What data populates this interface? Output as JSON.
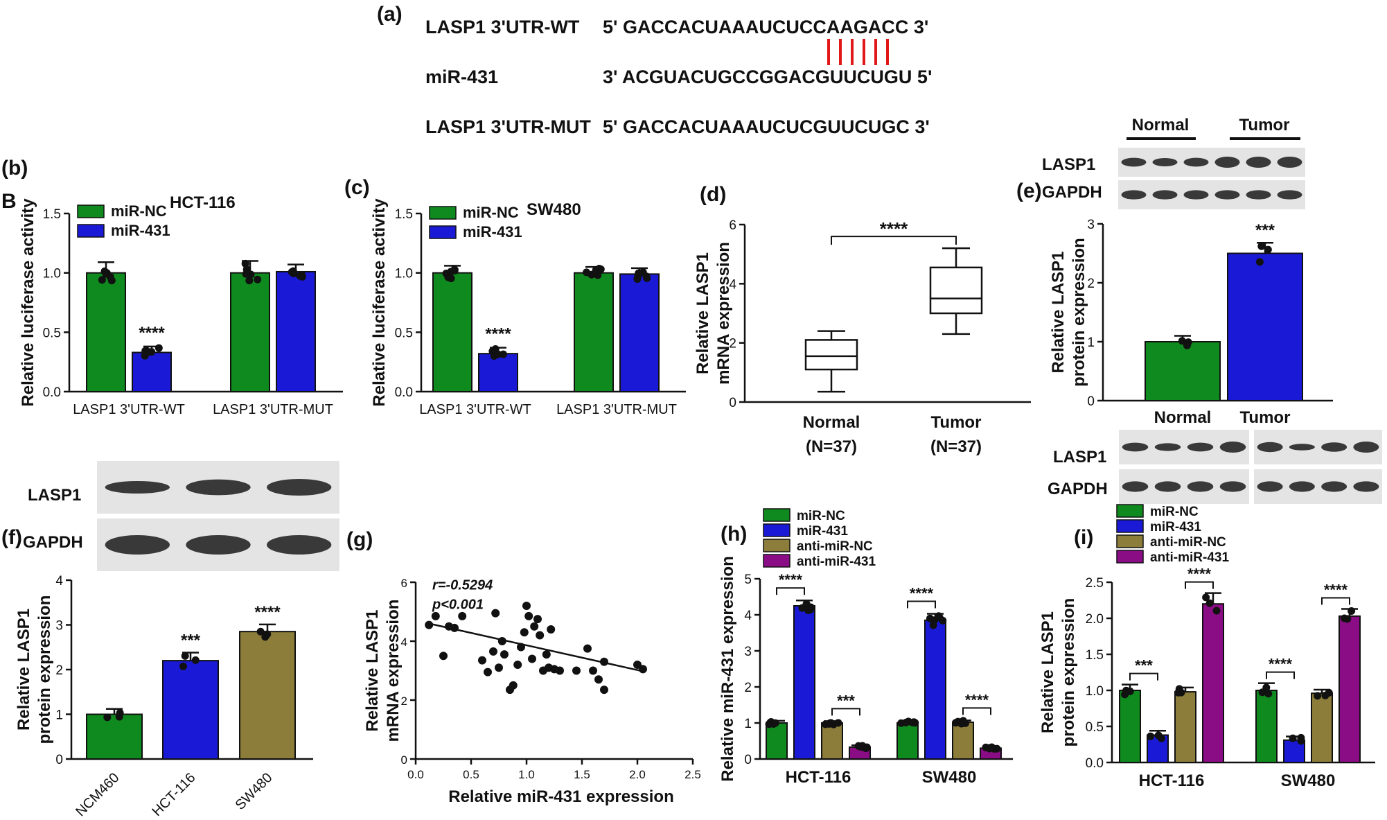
{
  "colors": {
    "green": "#0f8a1e",
    "blue": "#1a1ad6",
    "olive": "#8c7d3b",
    "purple": "#8b0d86",
    "red": "#e01818",
    "dark": "#111111",
    "blot_bg": "#e4e4e4",
    "band": "#262626"
  },
  "panel_a": {
    "label": "(a)",
    "rows": [
      {
        "name": "LASP1 3'UTR-WT",
        "seq": "5' GACCACUAAAUCUCCAAGACC 3'"
      },
      {
        "name": "miR-431",
        "seq": "3' ACGUACUGCCGGACGUUCUGU 5'"
      },
      {
        "name": "LASP1 3'UTR-MUT",
        "seq": "5' GACCACUAAAUCUCGUUCUGC 3'"
      }
    ],
    "pairing_lines": 6
  },
  "blot_e": {
    "groups": [
      "Normal",
      "Tumor"
    ],
    "rows": [
      "LASP1",
      "GAPDH"
    ]
  },
  "blot_e2": {
    "rows": [
      "LASP1",
      "GAPDH"
    ]
  },
  "blot_f": {
    "rows": [
      "LASP1",
      "GAPDH"
    ]
  },
  "chart_data": [
    {
      "id": "b",
      "label": "(b)",
      "type": "bar",
      "title": "HCT-116",
      "subtitle": "B",
      "ylabel": "Relative luciferase activity",
      "ylim": [
        0,
        1.5
      ],
      "yticks": [
        "0.0",
        "0.5",
        "1.0",
        "1.5"
      ],
      "categories": [
        "LASP1 3'UTR-WT",
        "LASP1 3'UTR-MUT"
      ],
      "legend": [
        "miR-NC",
        "miR-431"
      ],
      "series": [
        {
          "name": "miR-NC",
          "values": [
            1.0,
            1.0
          ],
          "err": [
            0.09,
            0.1
          ]
        },
        {
          "name": "miR-431",
          "values": [
            0.33,
            1.01
          ],
          "err": [
            0.05,
            0.06
          ]
        }
      ],
      "annotations": [
        {
          "text": "****",
          "category": 0,
          "series": 1
        }
      ]
    },
    {
      "id": "c",
      "label": "(c)",
      "type": "bar",
      "title": "SW480",
      "ylabel": "Relative luciferase activity",
      "ylim": [
        0,
        1.5
      ],
      "yticks": [
        "0.0",
        "0.5",
        "1.0",
        "1.5"
      ],
      "categories": [
        "LASP1 3'UTR-WT",
        "LASP1 3'UTR-MUT"
      ],
      "legend": [
        "miR-NC",
        "miR-431"
      ],
      "series": [
        {
          "name": "miR-NC",
          "values": [
            1.0,
            1.0
          ],
          "err": [
            0.06,
            0.05
          ]
        },
        {
          "name": "miR-431",
          "values": [
            0.32,
            0.99
          ],
          "err": [
            0.05,
            0.05
          ]
        }
      ],
      "annotations": [
        {
          "text": "****",
          "category": 0,
          "series": 1
        }
      ]
    },
    {
      "id": "d",
      "label": "(d)",
      "type": "box",
      "ylabel": "Relative LASP1 mRNA expression",
      "ylim": [
        0,
        6
      ],
      "yticks": [
        "0",
        "2",
        "4",
        "6"
      ],
      "categories": [
        "Normal",
        "Tumor"
      ],
      "category_sub": [
        "(N=37)",
        "(N=37)"
      ],
      "boxes": [
        {
          "min": 0.35,
          "q1": 1.1,
          "median": 1.55,
          "q3": 2.1,
          "max": 2.4
        },
        {
          "min": 2.3,
          "q1": 3.0,
          "median": 3.5,
          "q3": 4.55,
          "max": 5.2
        }
      ],
      "annotations": [
        {
          "text": "****"
        }
      ]
    },
    {
      "id": "e",
      "label": "(e)",
      "type": "bar",
      "ylabel": "Relative LASP1 protein expression",
      "ylim": [
        0,
        3
      ],
      "yticks": [
        "0",
        "1",
        "2",
        "3"
      ],
      "categories": [
        "Normal",
        "Tumor"
      ],
      "values": [
        1.0,
        2.5
      ],
      "err": [
        0.1,
        0.18
      ],
      "annotations": [
        {
          "text": "***",
          "category": 1
        }
      ]
    },
    {
      "id": "f",
      "label": "(f)",
      "type": "bar",
      "ylabel": "Relative LASP1 protein expression",
      "ylim": [
        0,
        4
      ],
      "yticks": [
        "0",
        "1",
        "2",
        "3",
        "4"
      ],
      "categories": [
        "NCM460",
        "HCT-116",
        "SW480"
      ],
      "values": [
        1.0,
        2.2,
        2.85
      ],
      "err": [
        0.12,
        0.18,
        0.16
      ],
      "annotations": [
        {
          "text": "***",
          "category": 1
        },
        {
          "text": "****",
          "category": 2
        }
      ]
    },
    {
      "id": "g",
      "label": "(g)",
      "type": "scatter",
      "xlabel": "Relative miR-431 expression",
      "ylabel": "Relative LASP1 mRNA expression",
      "xlim": [
        0,
        2.5
      ],
      "ylim": [
        0,
        6
      ],
      "xticks": [
        "0.0",
        "0.5",
        "1.0",
        "1.5",
        "2.0",
        "2.5"
      ],
      "yticks": [
        "0",
        "2",
        "4",
        "6"
      ],
      "stats": [
        "r=-0.5294",
        "p<0.001"
      ],
      "fit": {
        "slope": -0.84,
        "intercept": 4.7
      },
      "points": [
        [
          0.12,
          4.55
        ],
        [
          0.18,
          4.85
        ],
        [
          0.25,
          3.5
        ],
        [
          0.3,
          4.5
        ],
        [
          0.35,
          4.45
        ],
        [
          0.42,
          4.85
        ],
        [
          0.6,
          3.35
        ],
        [
          0.65,
          2.95
        ],
        [
          0.7,
          3.65
        ],
        [
          0.72,
          4.95
        ],
        [
          0.75,
          3.1
        ],
        [
          0.78,
          4.0
        ],
        [
          0.8,
          3.55
        ],
        [
          0.85,
          2.35
        ],
        [
          0.88,
          2.5
        ],
        [
          0.92,
          3.2
        ],
        [
          0.95,
          3.8
        ],
        [
          0.98,
          4.3
        ],
        [
          1.0,
          5.2
        ],
        [
          1.02,
          4.85
        ],
        [
          1.05,
          3.4
        ],
        [
          1.07,
          4.5
        ],
        [
          1.1,
          4.75
        ],
        [
          1.12,
          4.2
        ],
        [
          1.15,
          3.0
        ],
        [
          1.18,
          3.55
        ],
        [
          1.2,
          3.1
        ],
        [
          1.22,
          4.4
        ],
        [
          1.25,
          3.05
        ],
        [
          1.3,
          3.0
        ],
        [
          1.45,
          3.0
        ],
        [
          1.55,
          3.75
        ],
        [
          1.6,
          3.0
        ],
        [
          1.65,
          2.7
        ],
        [
          1.7,
          2.35
        ],
        [
          1.7,
          3.3
        ],
        [
          2.0,
          3.2
        ],
        [
          2.05,
          3.05
        ]
      ]
    },
    {
      "id": "h",
      "label": "(h)",
      "type": "bar",
      "ylabel": "Relative miR-431 expression",
      "ylim": [
        0,
        5
      ],
      "yticks": [
        "0",
        "1",
        "2",
        "3",
        "4",
        "5"
      ],
      "categories": [
        "HCT-116",
        "SW480"
      ],
      "legend": [
        "miR-NC",
        "miR-431",
        "anti-miR-NC",
        "anti-miR-431"
      ],
      "series": [
        {
          "name": "miR-NC",
          "values": [
            1.0,
            1.0
          ],
          "err": [
            0.06,
            0.05
          ]
        },
        {
          "name": "miR-431",
          "values": [
            4.25,
            3.85
          ],
          "err": [
            0.15,
            0.18
          ]
        },
        {
          "name": "anti-miR-NC",
          "values": [
            1.0,
            1.02
          ],
          "err": [
            0.05,
            0.05
          ]
        },
        {
          "name": "anti-miR-431",
          "values": [
            0.33,
            0.3
          ],
          "err": [
            0.05,
            0.04
          ]
        }
      ],
      "brackets": [
        {
          "category": 0,
          "from": 0,
          "to": 1,
          "text": "****"
        },
        {
          "category": 0,
          "from": 2,
          "to": 3,
          "text": "***"
        },
        {
          "category": 1,
          "from": 0,
          "to": 1,
          "text": "****"
        },
        {
          "category": 1,
          "from": 2,
          "to": 3,
          "text": "****"
        }
      ]
    },
    {
      "id": "i",
      "label": "(i)",
      "type": "bar",
      "ylabel": "Relative LASP1 protein expression",
      "ylim": [
        0,
        2.5
      ],
      "yticks": [
        "0.0",
        "0.5",
        "1.0",
        "1.5",
        "2.0",
        "2.5"
      ],
      "categories": [
        "HCT-116",
        "SW480"
      ],
      "legend": [
        "miR-NC",
        "miR-431",
        "anti-miR-NC",
        "anti-miR-431"
      ],
      "series": [
        {
          "name": "miR-NC",
          "values": [
            1.0,
            1.0
          ],
          "err": [
            0.08,
            0.1
          ]
        },
        {
          "name": "miR-431",
          "values": [
            0.38,
            0.31
          ],
          "err": [
            0.06,
            0.05
          ]
        },
        {
          "name": "anti-miR-NC",
          "values": [
            0.98,
            0.96
          ],
          "err": [
            0.06,
            0.05
          ]
        },
        {
          "name": "anti-miR-431",
          "values": [
            2.2,
            2.03
          ],
          "err": [
            0.15,
            0.1
          ]
        }
      ],
      "brackets": [
        {
          "category": 0,
          "from": 0,
          "to": 1,
          "text": "***"
        },
        {
          "category": 0,
          "from": 2,
          "to": 3,
          "text": "****"
        },
        {
          "category": 1,
          "from": 0,
          "to": 1,
          "text": "****"
        },
        {
          "category": 1,
          "from": 2,
          "to": 3,
          "text": "****"
        }
      ]
    }
  ]
}
